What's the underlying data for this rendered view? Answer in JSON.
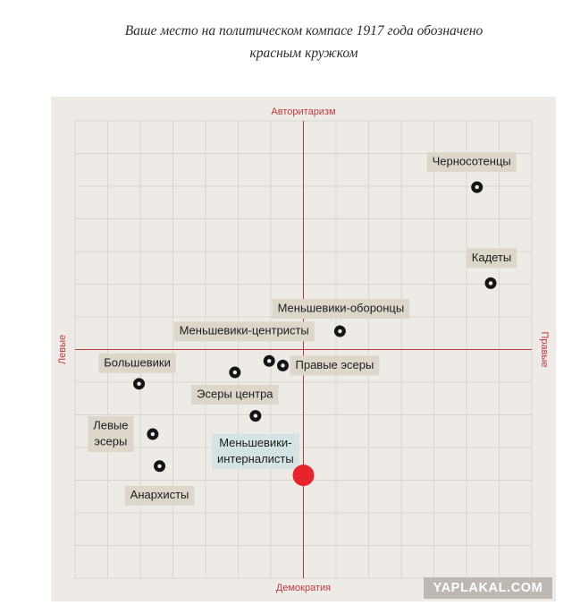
{
  "subtitle": {
    "line1": "Ваше место на политическом компасе 1917 года обозначено",
    "line2": "красным кружком"
  },
  "watermark": "YAPLAKAL.COM",
  "colors": {
    "panel_bg": "#eeebe6",
    "grid": "#d9d4cd",
    "axis": "#c0393e",
    "axis_label": "#c0393e",
    "label_bg": "#ddd6cb",
    "highlight_label_bg": "#d5e3e4",
    "user_marker": "#e8232b",
    "marker": "#151515"
  },
  "chart_data": {
    "type": "scatter",
    "title": "",
    "axes": {
      "top": "Авторитаризм",
      "bottom": "Демократия",
      "left": "Левые",
      "right": "Правые"
    },
    "xlim": [
      -10,
      10
    ],
    "ylim": [
      -10,
      10
    ],
    "grid": true,
    "points": [
      {
        "label": "Черносотенцы",
        "x": 7.6,
        "y": 7.1
      },
      {
        "label": "Кадеты",
        "x": 8.2,
        "y": 2.9
      },
      {
        "label": "Меньшевики-оборонцы",
        "x": 1.6,
        "y": 0.8
      },
      {
        "label": "Меньшевики-центристы",
        "x": -1.5,
        "y": -0.5
      },
      {
        "label": "Правые эсеры",
        "x": -0.9,
        "y": -0.7
      },
      {
        "label": "Большевики",
        "x": -7.2,
        "y": -1.5
      },
      {
        "label": "Эсеры центра",
        "x": -3.0,
        "y": -1.0
      },
      {
        "label": "Меньшевики-интерналисты",
        "x": -2.1,
        "y": -2.9
      },
      {
        "label": "Левые эсеры",
        "x": -6.6,
        "y": -3.7
      },
      {
        "label": "Анархисты",
        "x": -6.3,
        "y": -5.1
      }
    ],
    "user_position": {
      "x": 0.0,
      "y": -5.5
    }
  }
}
